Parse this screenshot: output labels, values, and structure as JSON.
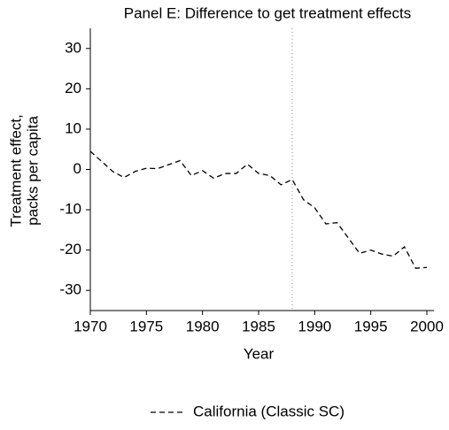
{
  "chart_data": {
    "type": "line",
    "title": "Panel E: Difference to get treatment effects",
    "xlabel": "Year",
    "ylabel": [
      "Treatment effect,",
      "packs per capita"
    ],
    "x": [
      1970,
      1971,
      1972,
      1973,
      1974,
      1975,
      1976,
      1977,
      1978,
      1979,
      1980,
      1981,
      1982,
      1983,
      1984,
      1985,
      1986,
      1987,
      1988,
      1989,
      1990,
      1991,
      1992,
      1993,
      1994,
      1995,
      1996,
      1997,
      1998,
      1999,
      2000
    ],
    "series": [
      {
        "name": "California (Classic SC)",
        "color": "#000000",
        "dash": "6,4",
        "values": [
          4.5,
          2,
          -0.5,
          -2,
          -0.5,
          0.3,
          0.2,
          1.2,
          2.2,
          -1.5,
          -0.3,
          -2.2,
          -1,
          -1,
          1.3,
          -1,
          -1.5,
          -3.8,
          -2.5,
          -7.5,
          -9.5,
          -13.5,
          -13.2,
          -17,
          -20.8,
          -20,
          -21,
          -21.5,
          -19.2,
          -24.5,
          -24.3
        ]
      }
    ],
    "xlim": [
      1970,
      2000
    ],
    "xticks": [
      1970,
      1975,
      1980,
      1985,
      1990,
      1995,
      2000
    ],
    "ylim": [
      -35,
      35
    ],
    "yticks": [
      -30,
      -20,
      -10,
      0,
      10,
      20,
      30
    ],
    "vline": 1988,
    "grid": false,
    "legend": "bottom"
  }
}
